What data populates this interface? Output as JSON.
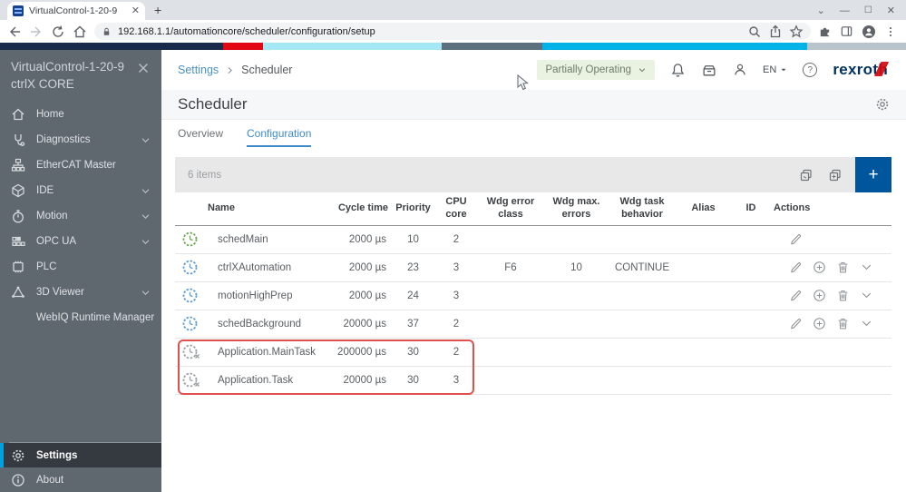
{
  "browser": {
    "tab_title": "VirtualControl-1-20-9",
    "url": "192.168.1.1/automationcore/scheduler/configuration/setup"
  },
  "brand_strip_colors": [
    "#1a2a4a",
    "#e30613",
    "#a5e8f5",
    "#5d707d",
    "#00b2e6",
    "#b8c4cc"
  ],
  "sidebar": {
    "title_line1": "VirtualControl-1-20-9",
    "title_line2": "ctrlX CORE",
    "items": [
      {
        "label": "Home",
        "icon": "home-icon",
        "chevron": false
      },
      {
        "label": "Diagnostics",
        "icon": "diagnostics-icon",
        "chevron": true
      },
      {
        "label": "EtherCAT Master",
        "icon": "ethercat-icon",
        "chevron": false
      },
      {
        "label": "IDE",
        "icon": "ide-icon",
        "chevron": true
      },
      {
        "label": "Motion",
        "icon": "motion-icon",
        "chevron": true
      },
      {
        "label": "OPC UA",
        "icon": "opcua-icon",
        "chevron": true
      },
      {
        "label": "PLC",
        "icon": "plc-icon",
        "chevron": false
      },
      {
        "label": "3D Viewer",
        "icon": "viewer3d-icon",
        "chevron": true
      },
      {
        "label": "WebIQ Runtime Manager",
        "icon": null,
        "chevron": false
      }
    ],
    "bottom_items": [
      {
        "label": "Settings",
        "icon": "gear-icon",
        "active": true
      },
      {
        "label": "About",
        "icon": "info-icon",
        "active": false
      }
    ]
  },
  "header": {
    "breadcrumb": [
      "Settings",
      "Scheduler"
    ],
    "status_badge": "Partially Operating",
    "icons": [
      "bell-icon",
      "archive-icon",
      "user-icon",
      "help-icon"
    ],
    "language": "EN",
    "brand": "rexroth"
  },
  "page": {
    "title": "Scheduler",
    "tabs": [
      {
        "label": "Overview",
        "active": false
      },
      {
        "label": "Configuration",
        "active": true
      }
    ]
  },
  "table": {
    "items_count_label": "6 items",
    "columns": [
      "Name",
      "Cycle time",
      "Priority",
      "CPU core",
      "Wdg error class",
      "Wdg max. errors",
      "Wdg task behavior",
      "Alias",
      "ID",
      "Actions"
    ],
    "rows": [
      {
        "icon": "clock-green",
        "name": "schedMain",
        "cycle_time": "2000 µs",
        "priority": "10",
        "cpu_core": "2",
        "wdg_error_class": "",
        "wdg_max_errors": "",
        "wdg_task_behavior": "",
        "alias": "",
        "id": "",
        "actions": [
          "edit"
        ],
        "highlighted": false
      },
      {
        "icon": "clock-blue",
        "name": "ctrlXAutomation",
        "cycle_time": "2000 µs",
        "priority": "23",
        "cpu_core": "3",
        "wdg_error_class": "F6",
        "wdg_max_errors": "10",
        "wdg_task_behavior": "CONTINUE",
        "alias": "",
        "id": "",
        "actions": [
          "edit",
          "add",
          "delete",
          "expand"
        ],
        "highlighted": false
      },
      {
        "icon": "clock-blue",
        "name": "motionHighPrep",
        "cycle_time": "2000 µs",
        "priority": "24",
        "cpu_core": "3",
        "wdg_error_class": "",
        "wdg_max_errors": "",
        "wdg_task_behavior": "",
        "alias": "",
        "id": "",
        "actions": [
          "edit",
          "add",
          "delete",
          "expand"
        ],
        "highlighted": false
      },
      {
        "icon": "clock-blue",
        "name": "schedBackground",
        "cycle_time": "20000 µs",
        "priority": "37",
        "cpu_core": "2",
        "wdg_error_class": "",
        "wdg_max_errors": "",
        "wdg_task_behavior": "",
        "alias": "",
        "id": "",
        "actions": [
          "edit",
          "add",
          "delete",
          "expand"
        ],
        "highlighted": false
      },
      {
        "icon": "clock-disabled",
        "name": "Application.MainTask",
        "cycle_time": "200000 µs",
        "priority": "30",
        "cpu_core": "2",
        "wdg_error_class": "",
        "wdg_max_errors": "",
        "wdg_task_behavior": "",
        "alias": "",
        "id": "",
        "actions": [],
        "highlighted": true
      },
      {
        "icon": "clock-disabled",
        "name": "Application.Task",
        "cycle_time": "20000 µs",
        "priority": "30",
        "cpu_core": "3",
        "wdg_error_class": "",
        "wdg_max_errors": "",
        "wdg_task_behavior": "",
        "alias": "",
        "id": "",
        "actions": [],
        "highlighted": true
      }
    ]
  },
  "colors": {
    "accent_blue": "#00569d",
    "sidebar_bg": "#60686f",
    "sidebar_accent": "#00a0e1",
    "link_blue": "#4a90c4",
    "tab_active_blue": "#3f8ac9",
    "status_badge_bg": "#eaf2e2",
    "status_badge_text": "#6e7c68",
    "highlight_red": "#e0514d",
    "clock_green": "#6aa84f",
    "clock_blue": "#5b9bd5",
    "clock_gray": "#9ba0a4"
  }
}
